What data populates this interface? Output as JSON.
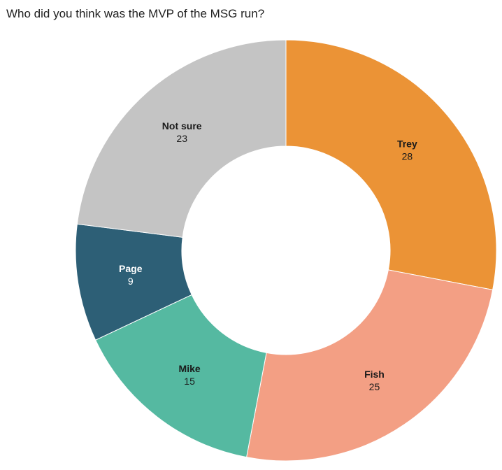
{
  "chart_data": {
    "type": "pie",
    "title": "Who did you think was the MVP of the MSG run?",
    "categories": [
      "Trey",
      "Fish",
      "Mike",
      "Page",
      "Not sure"
    ],
    "values": [
      28,
      25,
      15,
      9,
      23
    ],
    "colors": [
      "#EB9336",
      "#F39F84",
      "#55B9A1",
      "#2D5F76",
      "#C4C4C4"
    ],
    "label_colors": [
      "#1a1a1a",
      "#1a1a1a",
      "#1a1a1a",
      "#ffffff",
      "#1a1a1a"
    ],
    "start_angle_deg": 0,
    "direction": "clockwise",
    "donut": true,
    "legend": "none",
    "data_labels": "inside, category name above value"
  }
}
